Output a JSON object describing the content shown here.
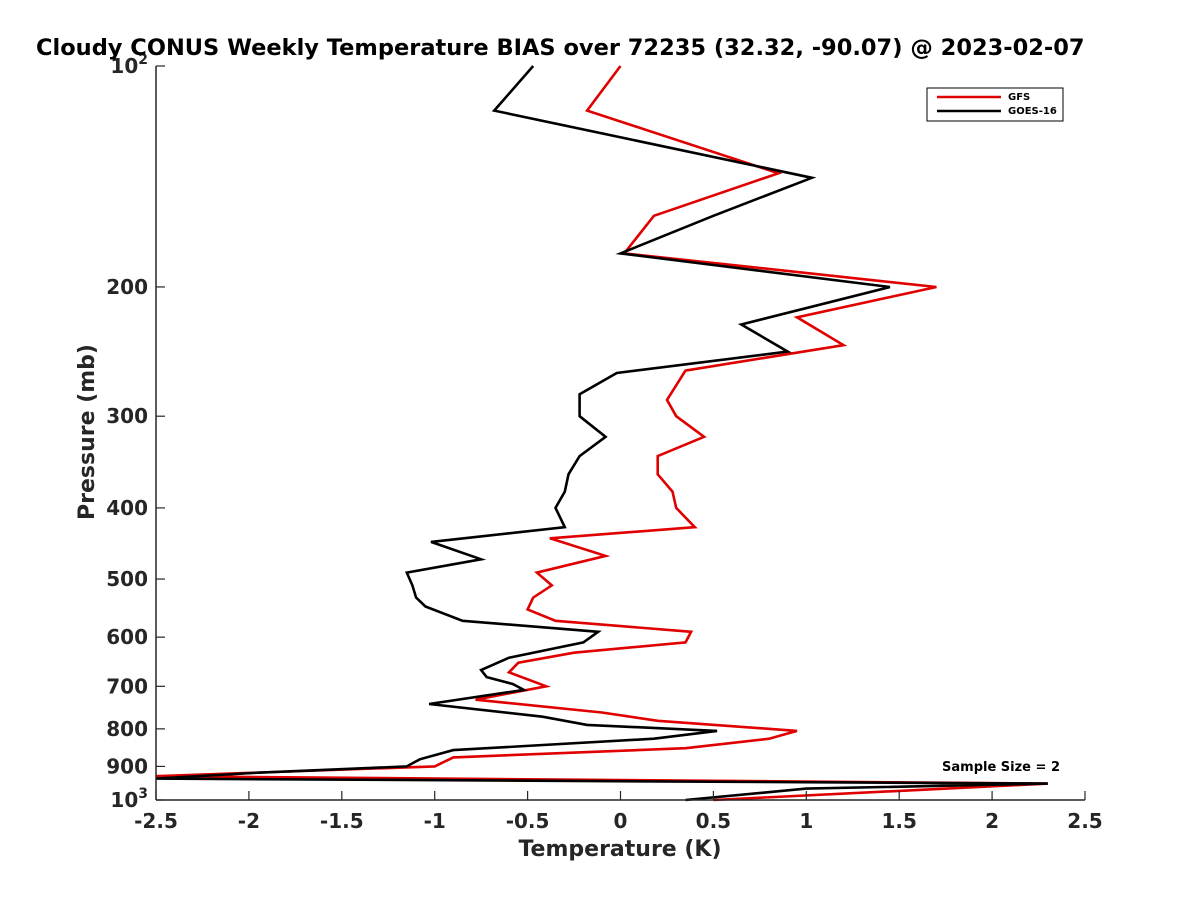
{
  "chart_data": {
    "type": "line",
    "title": "Cloudy CONUS Weekly Temperature BIAS over 72235 (32.32, -90.07) @ 2023-02-07",
    "xlabel": "Temperature (K)",
    "ylabel": "Pressure (mb)",
    "xlim": [
      -2.5,
      2.5
    ],
    "ylim": [
      100,
      1000
    ],
    "yscale": "log",
    "y_reversed": true,
    "x_ticks": [
      -2.5,
      -2,
      -1.5,
      -1,
      -0.5,
      0,
      0.5,
      1,
      1.5,
      2,
      2.5
    ],
    "x_tick_labels": [
      "-2.5",
      "-2",
      "-1.5",
      "-1",
      "-0.5",
      "0",
      "0.5",
      "1",
      "1.5",
      "2",
      "2.5"
    ],
    "y_ticks": [
      100,
      200,
      300,
      400,
      500,
      600,
      700,
      800,
      900,
      1000
    ],
    "y_tick_labels": [
      {
        "base": "10",
        "exp": "2"
      },
      {
        "base": "200",
        "exp": ""
      },
      {
        "base": "300",
        "exp": ""
      },
      {
        "base": "400",
        "exp": ""
      },
      {
        "base": "500",
        "exp": ""
      },
      {
        "base": "600",
        "exp": ""
      },
      {
        "base": "700",
        "exp": ""
      },
      {
        "base": "800",
        "exp": ""
      },
      {
        "base": "900",
        "exp": ""
      },
      {
        "base": "10",
        "exp": "3"
      }
    ],
    "grid": false,
    "legend_position": "top-right",
    "annotation": "Sample Size = 2",
    "series": [
      {
        "name": "GFS",
        "color": "#e00000",
        "points": [
          {
            "x": 0.0,
            "p": 100
          },
          {
            "x": -0.18,
            "p": 115
          },
          {
            "x": 0.85,
            "p": 140
          },
          {
            "x": 0.18,
            "p": 160
          },
          {
            "x": 0.02,
            "p": 180
          },
          {
            "x": 1.7,
            "p": 200
          },
          {
            "x": 0.95,
            "p": 220
          },
          {
            "x": 1.2,
            "p": 240
          },
          {
            "x": 0.35,
            "p": 260
          },
          {
            "x": 0.25,
            "p": 285
          },
          {
            "x": 0.3,
            "p": 300
          },
          {
            "x": 0.45,
            "p": 320
          },
          {
            "x": 0.2,
            "p": 340
          },
          {
            "x": 0.2,
            "p": 360
          },
          {
            "x": 0.28,
            "p": 380
          },
          {
            "x": 0.3,
            "p": 400
          },
          {
            "x": 0.4,
            "p": 425
          },
          {
            "x": -0.38,
            "p": 440
          },
          {
            "x": -0.08,
            "p": 465
          },
          {
            "x": -0.45,
            "p": 490
          },
          {
            "x": -0.37,
            "p": 510
          },
          {
            "x": -0.47,
            "p": 530
          },
          {
            "x": -0.5,
            "p": 550
          },
          {
            "x": -0.35,
            "p": 570
          },
          {
            "x": 0.38,
            "p": 590
          },
          {
            "x": 0.35,
            "p": 610
          },
          {
            "x": -0.25,
            "p": 630
          },
          {
            "x": -0.55,
            "p": 650
          },
          {
            "x": -0.6,
            "p": 670
          },
          {
            "x": -0.4,
            "p": 700
          },
          {
            "x": -0.78,
            "p": 730
          },
          {
            "x": -0.1,
            "p": 760
          },
          {
            "x": 0.2,
            "p": 780
          },
          {
            "x": 0.95,
            "p": 805
          },
          {
            "x": 0.8,
            "p": 825
          },
          {
            "x": 0.35,
            "p": 850
          },
          {
            "x": -0.9,
            "p": 875
          },
          {
            "x": -1.0,
            "p": 900
          },
          {
            "x": -2.5,
            "p": 928
          },
          {
            "x": 2.3,
            "p": 950
          },
          {
            "x": 0.5,
            "p": 1000
          }
        ]
      },
      {
        "name": "GOES-16",
        "color": "#000000",
        "points": [
          {
            "x": -0.47,
            "p": 100
          },
          {
            "x": -0.68,
            "p": 115
          },
          {
            "x": 1.03,
            "p": 142
          },
          {
            "x": 0.5,
            "p": 160
          },
          {
            "x": 0.0,
            "p": 180
          },
          {
            "x": 1.45,
            "p": 200
          },
          {
            "x": 0.65,
            "p": 225
          },
          {
            "x": 0.9,
            "p": 245
          },
          {
            "x": -0.02,
            "p": 262
          },
          {
            "x": -0.22,
            "p": 280
          },
          {
            "x": -0.22,
            "p": 300
          },
          {
            "x": -0.08,
            "p": 320
          },
          {
            "x": -0.22,
            "p": 340
          },
          {
            "x": -0.28,
            "p": 360
          },
          {
            "x": -0.3,
            "p": 380
          },
          {
            "x": -0.35,
            "p": 400
          },
          {
            "x": -0.3,
            "p": 425
          },
          {
            "x": -1.02,
            "p": 445
          },
          {
            "x": -0.75,
            "p": 470
          },
          {
            "x": -1.15,
            "p": 490
          },
          {
            "x": -1.12,
            "p": 510
          },
          {
            "x": -1.1,
            "p": 530
          },
          {
            "x": -1.05,
            "p": 545
          },
          {
            "x": -0.85,
            "p": 570
          },
          {
            "x": -0.12,
            "p": 590
          },
          {
            "x": -0.2,
            "p": 610
          },
          {
            "x": -0.6,
            "p": 640
          },
          {
            "x": -0.75,
            "p": 665
          },
          {
            "x": -0.72,
            "p": 680
          },
          {
            "x": -0.58,
            "p": 695
          },
          {
            "x": -0.52,
            "p": 708
          },
          {
            "x": -1.03,
            "p": 740
          },
          {
            "x": -0.42,
            "p": 770
          },
          {
            "x": -0.18,
            "p": 790
          },
          {
            "x": 0.52,
            "p": 805
          },
          {
            "x": 0.18,
            "p": 825
          },
          {
            "x": -0.9,
            "p": 855
          },
          {
            "x": -1.08,
            "p": 880
          },
          {
            "x": -1.15,
            "p": 900
          },
          {
            "x": -1.95,
            "p": 918
          },
          {
            "x": -2.5,
            "p": 935
          },
          {
            "x": 2.3,
            "p": 950
          },
          {
            "x": 1.0,
            "p": 965
          },
          {
            "x": 0.35,
            "p": 1000
          }
        ]
      }
    ]
  }
}
